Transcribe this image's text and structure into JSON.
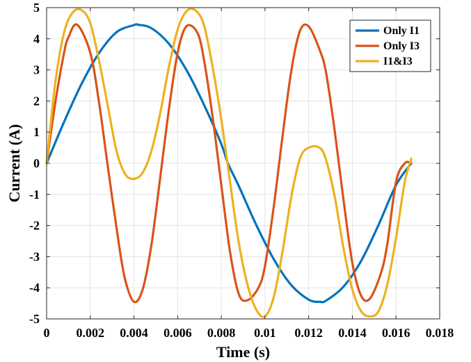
{
  "chart_data": {
    "type": "line",
    "title": "",
    "xlabel": "Time (s)",
    "ylabel": "Current (A)",
    "xlim": [
      0,
      0.018
    ],
    "ylim": [
      -5,
      5
    ],
    "xticks": [
      0,
      0.002,
      0.004,
      0.006,
      0.008,
      0.01,
      0.012,
      0.014,
      0.016,
      0.018
    ],
    "xtick_labels": [
      "0",
      "0.002",
      "0.004",
      "0.006",
      "0.008",
      "0.01",
      "0.012",
      "0.014",
      "0.016",
      "0.018"
    ],
    "yticks": [
      -5,
      -4,
      -3,
      -2,
      -1,
      0,
      1,
      2,
      3,
      4,
      5
    ],
    "ytick_labels": [
      "-5",
      "-4",
      "-3",
      "-2",
      "-1",
      "0",
      "1",
      "2",
      "3",
      "4",
      "5"
    ],
    "grid": true,
    "legend_position": "top-right",
    "series": [
      {
        "name": "Only I1",
        "color": "#0072BD",
        "x": [
          0,
          0.0008,
          0.0016,
          0.0024,
          0.0032,
          0.004,
          0.0042,
          0.0048,
          0.0056,
          0.0064,
          0.0072,
          0.008,
          0.0083,
          0.0088,
          0.0096,
          0.0104,
          0.0112,
          0.012,
          0.0125,
          0.0128,
          0.0136,
          0.0144,
          0.0152,
          0.016,
          0.0167
        ],
        "y": [
          0,
          1.33,
          2.55,
          3.54,
          4.21,
          4.44,
          4.45,
          4.34,
          3.84,
          3.0,
          1.89,
          0.62,
          0,
          -0.73,
          -1.98,
          -3.08,
          -3.91,
          -4.38,
          -4.45,
          -4.41,
          -3.96,
          -3.14,
          -1.98,
          -0.7,
          0
        ]
      },
      {
        "name": "Only I3",
        "color": "#D95319",
        "x": [
          0,
          0.0004,
          0.0008,
          0.001,
          0.0014,
          0.002,
          0.0024,
          0.0028,
          0.0033,
          0.0036,
          0.004,
          0.0044,
          0.0048,
          0.0052,
          0.0056,
          0.006,
          0.0064,
          0.0069,
          0.0072,
          0.0076,
          0.008,
          0.0084,
          0.0088,
          0.0092,
          0.0097,
          0.01,
          0.0104,
          0.0108,
          0.0112,
          0.0116,
          0.012,
          0.0125,
          0.0128,
          0.0132,
          0.0136,
          0.014,
          0.0144,
          0.0148,
          0.0153,
          0.0156,
          0.016,
          0.0164,
          0.0167
        ],
        "y": [
          0,
          1.96,
          3.55,
          4.05,
          4.45,
          3.55,
          1.96,
          -0.09,
          -2.55,
          -3.75,
          -4.45,
          -4.05,
          -2.62,
          -0.47,
          1.73,
          3.55,
          4.4,
          4.2,
          3.35,
          1.5,
          -0.7,
          -2.85,
          -4.2,
          -4.4,
          -4.0,
          -3.3,
          -1.4,
          0.85,
          2.95,
          4.25,
          4.4,
          3.65,
          2.9,
          1.0,
          -1.2,
          -3.2,
          -4.25,
          -4.35,
          -3.55,
          -2.6,
          -0.6,
          0.0,
          0.0
        ]
      },
      {
        "name": "I1&I3",
        "color": "#EDB120",
        "x": [
          0,
          0.0004,
          0.0008,
          0.0012,
          0.0016,
          0.002,
          0.0024,
          0.0028,
          0.0032,
          0.0036,
          0.004,
          0.0044,
          0.0048,
          0.0052,
          0.0056,
          0.006,
          0.0064,
          0.0068,
          0.0072,
          0.0076,
          0.008,
          0.0084,
          0.0088,
          0.0092,
          0.0096,
          0.01,
          0.0104,
          0.0108,
          0.0112,
          0.0116,
          0.012,
          0.0125,
          0.0128,
          0.0132,
          0.0136,
          0.014,
          0.0144,
          0.0148,
          0.0152,
          0.0156,
          0.016,
          0.0164,
          0.0167
        ],
        "y": [
          0,
          2.6,
          4.2,
          4.85,
          4.92,
          4.5,
          3.3,
          1.85,
          0.4,
          -0.35,
          -0.5,
          -0.3,
          0.4,
          1.6,
          3.1,
          4.3,
          4.88,
          4.92,
          4.45,
          3.1,
          1.4,
          -0.6,
          -2.55,
          -3.9,
          -4.7,
          -4.92,
          -4.3,
          -2.85,
          -1.1,
          0.15,
          0.5,
          0.5,
          0.1,
          -1.1,
          -2.75,
          -4.05,
          -4.75,
          -4.92,
          -4.75,
          -3.9,
          -2.4,
          -0.6,
          0.15
        ]
      }
    ]
  }
}
